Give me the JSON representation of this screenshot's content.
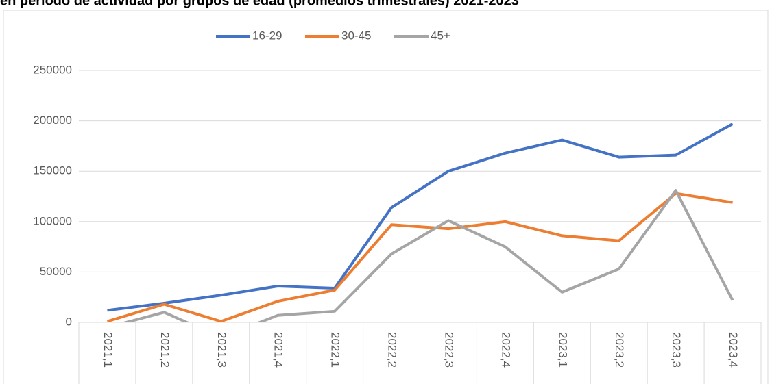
{
  "chart_data": {
    "type": "line",
    "title": "en período de actividad por grupos de edad (promedios trimestrales) 2021-2023",
    "categories": [
      "2021,1",
      "2021,2",
      "2021,3",
      "2021,4",
      "2022,1",
      "2022,2",
      "2022,3",
      "2022,4",
      "2023,1",
      "2023,2",
      "2023,3",
      "2023,4"
    ],
    "series": [
      {
        "name": "16-29",
        "color": "#4472c4",
        "values": [
          12000,
          19000,
          27000,
          36000,
          34000,
          114000,
          150000,
          168000,
          181000,
          164000,
          166000,
          197000
        ]
      },
      {
        "name": "30-45",
        "color": "#ed7d31",
        "values": [
          1000,
          18000,
          1000,
          21000,
          32000,
          97000,
          93000,
          100000,
          86000,
          81000,
          128000,
          119000
        ]
      },
      {
        "name": "45+",
        "color": "#a5a5a5",
        "values": [
          -5000,
          10000,
          -15000,
          7000,
          11000,
          68000,
          101000,
          75000,
          30000,
          53000,
          131000,
          22000
        ]
      }
    ],
    "ylim": [
      0,
      250000
    ],
    "yticks": [
      0,
      50000,
      100000,
      150000,
      200000,
      250000
    ],
    "grid": true,
    "legend": "top"
  }
}
